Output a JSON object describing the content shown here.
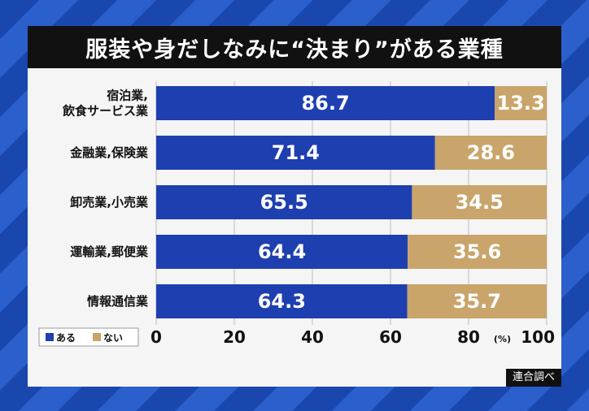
{
  "chart_data": {
    "type": "bar",
    "orientation": "horizontal",
    "stacked": true,
    "title": "服装や身だしなみに“決まり”がある業種",
    "categories": [
      [
        "宿泊業,",
        "飲食サービス業"
      ],
      [
        "金融業,保険業"
      ],
      [
        "卸売業,小売業"
      ],
      [
        "運輸業,郵便業"
      ],
      [
        "情報通信業"
      ]
    ],
    "series": [
      {
        "name": "ある",
        "color": "#1e3fb0",
        "values": [
          86.7,
          71.4,
          65.5,
          64.4,
          64.3
        ]
      },
      {
        "name": "ない",
        "color": "#c9a46b",
        "values": [
          13.3,
          28.6,
          34.5,
          35.6,
          35.7
        ]
      }
    ],
    "xlim": [
      0,
      100
    ],
    "xticks": [
      "0",
      "20",
      "40",
      "60",
      "80",
      "100"
    ],
    "unit": "(%)",
    "source": "連合調べ"
  }
}
